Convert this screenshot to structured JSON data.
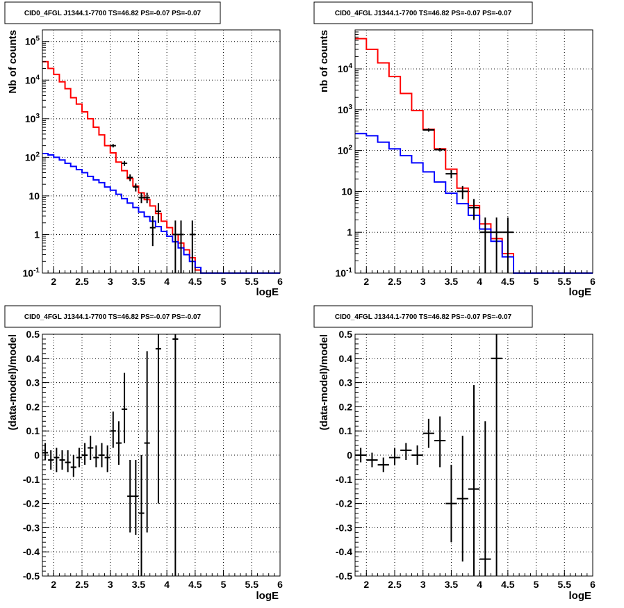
{
  "pads": [
    {
      "title": "CID0_4FGL J1344.1-7700 TS=46.82 PS=-0.07 PS=-0.07",
      "ylabel": "Nb of counts",
      "xlabel": "logE"
    },
    {
      "title": "CID0_4FGL J1344.1-7700 TS=46.82 PS=-0.07 PS=-0.07",
      "ylabel": "nb of counts",
      "xlabel": "logE"
    },
    {
      "title": "CID0_4FGL J1344.1-7700 TS=46.82 PS=-0.07 PS=-0.07",
      "ylabel": "(data-model)/model",
      "xlabel": "logE"
    },
    {
      "title": "CID0_4FGL J1344.1-7700 TS=46.82 PS=-0.07 PS=-0.07",
      "ylabel": "(data-model)/model",
      "xlabel": "logE"
    }
  ],
  "colors": {
    "total_model": "#ff0000",
    "source_model": "#0000ff",
    "data": "#000000",
    "grid": "#000000"
  },
  "chart_data": [
    {
      "type": "line",
      "scale": "log-y",
      "title": "CID0_4FGL J1344.1-7700 TS=46.82 PS=-0.07 PS=-0.07",
      "xlabel": "logE",
      "ylabel": "Nb of counts",
      "xlim": [
        1.8,
        6.0
      ],
      "ylim": [
        0.1,
        200000
      ],
      "xticks": [
        "2",
        "2.5",
        "3",
        "3.5",
        "4",
        "4.5",
        "5",
        "5.5",
        "6"
      ],
      "yticks": [
        "10^-1",
        "1",
        "10",
        "10^2",
        "10^3",
        "10^4",
        "10^5"
      ],
      "grid": true,
      "bin_edges": [
        1.8,
        1.9,
        2.0,
        2.1,
        2.2,
        2.3,
        2.4,
        2.5,
        2.6,
        2.7,
        2.8,
        2.9,
        3.0,
        3.1,
        3.2,
        3.3,
        3.4,
        3.5,
        3.6,
        3.7,
        3.8,
        3.9,
        4.0,
        4.1,
        4.2,
        4.3,
        4.4,
        4.5,
        4.6,
        4.7,
        4.8,
        4.9,
        5.0,
        5.1,
        5.2,
        5.3,
        5.4,
        5.5,
        5.6,
        5.7,
        5.8,
        5.9,
        6.0
      ],
      "series": [
        {
          "values": [
            30000,
            20000,
            14000,
            9000,
            6000,
            3500,
            2400,
            1500,
            1000,
            600,
            380,
            200,
            130,
            75,
            45,
            28,
            18,
            12,
            8,
            5.5,
            3.5,
            2.2,
            1.5,
            1.0,
            0.6,
            0.4,
            0.25,
            0.12,
            0.1,
            0.1,
            0.1,
            0.1,
            0.1,
            0.1,
            0.1,
            0.1,
            0.1,
            0.1,
            0.1,
            0.1,
            0.1,
            0.1
          ]
        },
        {
          "values": [
            125,
            115,
            100,
            85,
            70,
            58,
            48,
            40,
            32,
            26,
            22,
            17,
            14,
            11,
            8.5,
            6.5,
            5,
            3.8,
            2.9,
            2.2,
            1.6,
            1.2,
            0.9,
            0.65,
            0.45,
            0.3,
            0.2,
            0.14,
            0.1,
            0.1,
            0.1,
            0.1,
            0.1,
            0.1,
            0.1,
            0.1,
            0.1,
            0.1,
            0.1,
            0.1,
            0.1,
            0.1
          ]
        },
        {
          "type": "errorbar",
          "points": [
            {
              "x": 3.05,
              "y": 200,
              "xerr": 0.05,
              "ylo": 180,
              "yhi": 220
            },
            {
              "x": 3.25,
              "y": 70,
              "xerr": 0.05,
              "ylo": 60,
              "yhi": 80
            },
            {
              "x": 3.35,
              "y": 30,
              "xerr": 0.05,
              "ylo": 24,
              "yhi": 36
            },
            {
              "x": 3.45,
              "y": 17,
              "xerr": 0.05,
              "ylo": 13,
              "yhi": 21
            },
            {
              "x": 3.55,
              "y": 9,
              "xerr": 0.05,
              "ylo": 6.5,
              "yhi": 12
            },
            {
              "x": 3.65,
              "y": 9,
              "xerr": 0.05,
              "ylo": 6.5,
              "yhi": 12
            },
            {
              "x": 3.75,
              "y": 1.5,
              "xerr": 0.05,
              "ylo": 0.5,
              "yhi": 3
            },
            {
              "x": 3.85,
              "y": 4,
              "xerr": 0.05,
              "ylo": 2,
              "yhi": 6.5
            },
            {
              "x": 4.15,
              "y": 1,
              "xerr": 0.05,
              "ylo": 0.1,
              "yhi": 2.3
            },
            {
              "x": 4.25,
              "y": 1,
              "xerr": 0.05,
              "ylo": 0.1,
              "yhi": 2.3
            },
            {
              "x": 4.45,
              "y": 1,
              "xerr": 0.05,
              "ylo": 0.1,
              "yhi": 2.3
            }
          ]
        }
      ]
    },
    {
      "type": "line",
      "scale": "log-y",
      "title": "CID0_4FGL J1344.1-7700 TS=46.82 PS=-0.07 PS=-0.07",
      "xlabel": "logE",
      "ylabel": "nb of counts",
      "xlim": [
        1.8,
        6.0
      ],
      "ylim": [
        0.1,
        90000
      ],
      "xticks": [
        "2",
        "2.5",
        "3",
        "3.5",
        "4",
        "4.5",
        "5",
        "5.5",
        "6"
      ],
      "yticks": [
        "10^-1",
        "1",
        "10",
        "10^2",
        "10^3",
        "10^4"
      ],
      "grid": true,
      "bin_edges": [
        1.8,
        2.0,
        2.2,
        2.4,
        2.6,
        2.8,
        3.0,
        3.2,
        3.4,
        3.6,
        3.8,
        4.0,
        4.2,
        4.4,
        4.6,
        4.8,
        5.0,
        5.2,
        5.4,
        5.6,
        5.8,
        6.0
      ],
      "series": [
        {
          "values": [
            55000,
            30000,
            14000,
            6500,
            2500,
            950,
            330,
            110,
            35,
            12,
            4.5,
            1.6,
            0.7,
            0.3,
            0.1,
            0.1,
            0.1,
            0.1,
            0.1,
            0.1,
            0.1
          ]
        },
        {
          "values": [
            260,
            230,
            160,
            110,
            75,
            50,
            30,
            17,
            9,
            5,
            2.6,
            1.2,
            0.6,
            0.25,
            0.1,
            0.1,
            0.1,
            0.1,
            0.1,
            0.1,
            0.1
          ]
        },
        {
          "type": "errorbar",
          "points": [
            {
              "x": 3.1,
              "y": 320,
              "xerr": 0.1,
              "ylo": 290,
              "yhi": 350
            },
            {
              "x": 3.3,
              "y": 105,
              "xerr": 0.1,
              "ylo": 95,
              "yhi": 115
            },
            {
              "x": 3.5,
              "y": 27,
              "xerr": 0.1,
              "ylo": 21,
              "yhi": 33
            },
            {
              "x": 3.7,
              "y": 10,
              "xerr": 0.1,
              "ylo": 6.5,
              "yhi": 13.5
            },
            {
              "x": 3.9,
              "y": 4,
              "xerr": 0.1,
              "ylo": 2,
              "yhi": 6.5
            },
            {
              "x": 4.1,
              "y": 1,
              "xerr": 0.1,
              "ylo": 0.1,
              "yhi": 2.3
            },
            {
              "x": 4.3,
              "y": 1,
              "xerr": 0.1,
              "ylo": 0.1,
              "yhi": 2.3
            },
            {
              "x": 4.5,
              "y": 1,
              "xerr": 0.1,
              "ylo": 0.1,
              "yhi": 2.3
            }
          ]
        }
      ]
    },
    {
      "type": "scatter",
      "title": "CID0_4FGL J1344.1-7700 TS=46.82 PS=-0.07 PS=-0.07",
      "xlabel": "logE",
      "ylabel": "(data-model)/model",
      "xlim": [
        1.8,
        6.0
      ],
      "ylim": [
        -0.5,
        0.5
      ],
      "xticks": [
        "2",
        "2.5",
        "3",
        "3.5",
        "4",
        "4.5",
        "5",
        "5.5",
        "6"
      ],
      "yticks": [
        "-0.5",
        "-0.4",
        "-0.3",
        "-0.2",
        "-0.1",
        "0",
        "0.1",
        "0.2",
        "0.3",
        "0.4",
        "0.5"
      ],
      "grid": true,
      "series": [
        {
          "points": [
            {
              "x": 1.85,
              "y": 0.01,
              "xerr": 0.05,
              "ylo": -0.02,
              "yhi": 0.05
            },
            {
              "x": 1.95,
              "y": -0.02,
              "xerr": 0.05,
              "ylo": -0.06,
              "yhi": 0.02
            },
            {
              "x": 2.05,
              "y": -0.01,
              "xerr": 0.05,
              "ylo": -0.07,
              "yhi": 0.03
            },
            {
              "x": 2.15,
              "y": -0.02,
              "xerr": 0.05,
              "ylo": -0.06,
              "yhi": 0.02
            },
            {
              "x": 2.25,
              "y": -0.03,
              "xerr": 0.05,
              "ylo": -0.07,
              "yhi": 0.02
            },
            {
              "x": 2.35,
              "y": -0.05,
              "xerr": 0.05,
              "ylo": -0.09,
              "yhi": 0.0
            },
            {
              "x": 2.45,
              "y": -0.01,
              "xerr": 0.05,
              "ylo": -0.05,
              "yhi": 0.03
            },
            {
              "x": 2.55,
              "y": 0.0,
              "xerr": 0.05,
              "ylo": -0.04,
              "yhi": 0.05
            },
            {
              "x": 2.65,
              "y": 0.03,
              "xerr": 0.05,
              "ylo": -0.02,
              "yhi": 0.08
            },
            {
              "x": 2.75,
              "y": -0.01,
              "xerr": 0.05,
              "ylo": -0.05,
              "yhi": 0.04
            },
            {
              "x": 2.85,
              "y": 0.0,
              "xerr": 0.05,
              "ylo": -0.05,
              "yhi": 0.05
            },
            {
              "x": 2.95,
              "y": -0.01,
              "xerr": 0.05,
              "ylo": -0.07,
              "yhi": 0.04
            },
            {
              "x": 3.05,
              "y": 0.1,
              "xerr": 0.05,
              "ylo": 0.03,
              "yhi": 0.18
            },
            {
              "x": 3.15,
              "y": 0.05,
              "xerr": 0.05,
              "ylo": -0.04,
              "yhi": 0.14
            },
            {
              "x": 3.25,
              "y": 0.19,
              "xerr": 0.05,
              "ylo": 0.05,
              "yhi": 0.34
            },
            {
              "x": 3.35,
              "y": -0.17,
              "xerr": 0.05,
              "ylo": -0.32,
              "yhi": -0.02
            },
            {
              "x": 3.45,
              "y": -0.17,
              "xerr": 0.05,
              "ylo": -0.33,
              "yhi": -0.02
            },
            {
              "x": 3.55,
              "y": -0.24,
              "xerr": 0.05,
              "ylo": -0.5,
              "yhi": 0.0
            },
            {
              "x": 3.65,
              "y": 0.05,
              "xerr": 0.05,
              "ylo": -0.32,
              "yhi": 0.43
            },
            {
              "x": 3.85,
              "y": 0.44,
              "xerr": 0.05,
              "ylo": -0.2,
              "yhi": 0.5
            },
            {
              "x": 4.15,
              "y": 0.48,
              "xerr": 0.05,
              "ylo": -0.5,
              "yhi": 0.5
            }
          ]
        }
      ]
    },
    {
      "type": "scatter",
      "title": "CID0_4FGL J1344.1-7700 TS=46.82 PS=-0.07 PS=-0.07",
      "xlabel": "logE",
      "ylabel": "(data-model)/model",
      "xlim": [
        1.8,
        6.0
      ],
      "ylim": [
        -0.5,
        0.5
      ],
      "xticks": [
        "2",
        "2.5",
        "3",
        "3.5",
        "4",
        "4.5",
        "5",
        "5.5",
        "6"
      ],
      "yticks": [
        "-0.5",
        "-0.4",
        "-0.3",
        "-0.2",
        "-0.1",
        "0",
        "0.1",
        "0.2",
        "0.3",
        "0.4",
        "0.5"
      ],
      "grid": true,
      "series": [
        {
          "points": [
            {
              "x": 1.9,
              "y": 0.0,
              "xerr": 0.1,
              "ylo": -0.03,
              "yhi": 0.03
            },
            {
              "x": 2.1,
              "y": -0.02,
              "xerr": 0.1,
              "ylo": -0.05,
              "yhi": 0.01
            },
            {
              "x": 2.3,
              "y": -0.04,
              "xerr": 0.1,
              "ylo": -0.07,
              "yhi": -0.01
            },
            {
              "x": 2.5,
              "y": -0.01,
              "xerr": 0.1,
              "ylo": -0.04,
              "yhi": 0.03
            },
            {
              "x": 2.7,
              "y": 0.02,
              "xerr": 0.1,
              "ylo": -0.02,
              "yhi": 0.05
            },
            {
              "x": 2.9,
              "y": 0.0,
              "xerr": 0.1,
              "ylo": -0.04,
              "yhi": 0.04
            },
            {
              "x": 3.1,
              "y": 0.09,
              "xerr": 0.1,
              "ylo": 0.03,
              "yhi": 0.15
            },
            {
              "x": 3.3,
              "y": 0.06,
              "xerr": 0.1,
              "ylo": -0.05,
              "yhi": 0.16
            },
            {
              "x": 3.5,
              "y": -0.2,
              "xerr": 0.1,
              "ylo": -0.36,
              "yhi": -0.04
            },
            {
              "x": 3.7,
              "y": -0.18,
              "xerr": 0.1,
              "ylo": -0.44,
              "yhi": 0.08
            },
            {
              "x": 3.9,
              "y": -0.14,
              "xerr": 0.1,
              "ylo": -0.5,
              "yhi": 0.29
            },
            {
              "x": 4.1,
              "y": -0.43,
              "xerr": 0.1,
              "ylo": -0.5,
              "yhi": 0.14
            },
            {
              "x": 4.3,
              "y": 0.4,
              "xerr": 0.1,
              "ylo": -0.5,
              "yhi": 0.5
            }
          ]
        }
      ]
    }
  ]
}
